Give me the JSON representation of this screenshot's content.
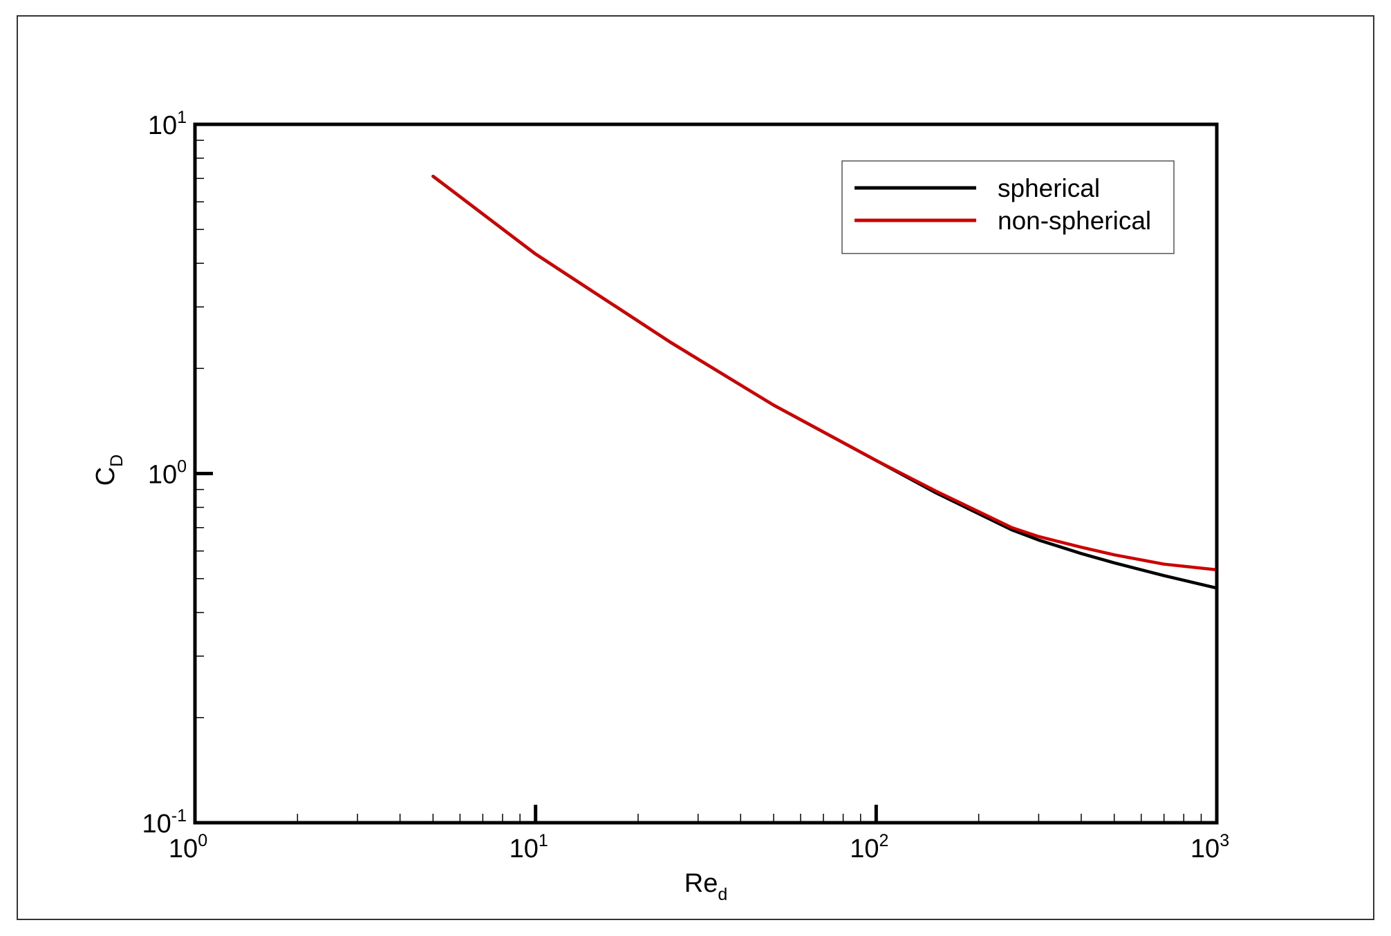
{
  "chart_data": {
    "type": "line",
    "xscale": "log",
    "yscale": "log",
    "xlim": [
      1,
      1000
    ],
    "ylim": [
      0.1,
      10
    ],
    "xlabel": {
      "main": "Re",
      "sub": "d"
    },
    "ylabel": {
      "main": "C",
      "sub": "D"
    },
    "x_ticks": [
      {
        "base": "10",
        "exp": "0",
        "value": 1
      },
      {
        "base": "10",
        "exp": "1",
        "value": 10
      },
      {
        "base": "10",
        "exp": "2",
        "value": 100
      },
      {
        "base": "10",
        "exp": "3",
        "value": 1000
      }
    ],
    "y_ticks": [
      {
        "base": "10",
        "exp": "-1",
        "value": 0.1
      },
      {
        "base": "10",
        "exp": "0",
        "value": 1
      },
      {
        "base": "10",
        "exp": "1",
        "value": 10
      }
    ],
    "grid": false,
    "legend_position": "top-right",
    "series": [
      {
        "name": "spherical",
        "color": "#000000",
        "x": [
          5,
          10,
          25,
          50,
          100,
          150,
          250,
          300,
          400,
          500,
          700,
          1000
        ],
        "y": [
          7.1,
          4.25,
          2.37,
          1.57,
          1.09,
          0.88,
          0.69,
          0.645,
          0.59,
          0.555,
          0.51,
          0.47
        ]
      },
      {
        "name": "non-spherical",
        "color": "#cc0000",
        "x": [
          5,
          10,
          25,
          50,
          100,
          150,
          250,
          300,
          400,
          500,
          700,
          1000
        ],
        "y": [
          7.1,
          4.25,
          2.37,
          1.57,
          1.09,
          0.89,
          0.7,
          0.66,
          0.615,
          0.585,
          0.55,
          0.53
        ]
      }
    ]
  }
}
